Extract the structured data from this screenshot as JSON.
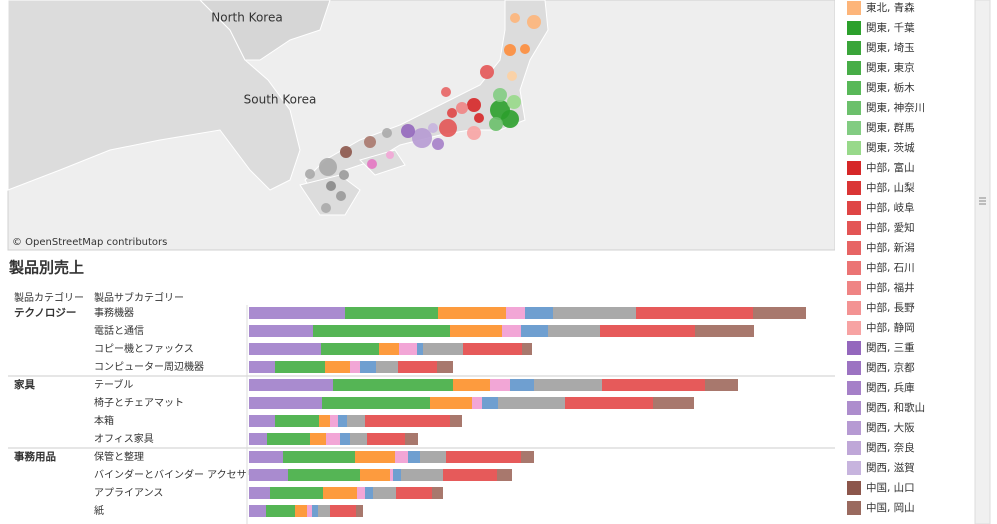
{
  "map": {
    "labels": [
      "North Korea",
      "South Korea",
      "© OpenStreetMap contributors"
    ]
  },
  "legend": {
    "items": [
      {
        "label": "東北, 青森",
        "color": "#fdb57a"
      },
      {
        "label": "関東, 千葉",
        "color": "#2ca02c"
      },
      {
        "label": "関東, 埼玉",
        "color": "#3aa53a"
      },
      {
        "label": "関東, 東京",
        "color": "#47ad47"
      },
      {
        "label": "関東, 栃木",
        "color": "#58b858"
      },
      {
        "label": "関東, 神奈川",
        "color": "#6cc06c"
      },
      {
        "label": "関東, 群馬",
        "color": "#82cc82"
      },
      {
        "label": "関東, 茨城",
        "color": "#98d98a"
      },
      {
        "label": "中部, 富山",
        "color": "#d62728"
      },
      {
        "label": "中部, 山梨",
        "color": "#da3535"
      },
      {
        "label": "中部, 岐阜",
        "color": "#df4545"
      },
      {
        "label": "中部, 愛知",
        "color": "#e35555"
      },
      {
        "label": "中部, 新潟",
        "color": "#e76464"
      },
      {
        "label": "中部, 石川",
        "color": "#eb7474"
      },
      {
        "label": "中部, 福井",
        "color": "#ef8484"
      },
      {
        "label": "中部, 長野",
        "color": "#f39393"
      },
      {
        "label": "中部, 静岡",
        "color": "#f7a3a3"
      },
      {
        "label": "関西, 三重",
        "color": "#9467bd"
      },
      {
        "label": "関西, 京都",
        "color": "#9c73c2"
      },
      {
        "label": "関西, 兵庫",
        "color": "#a580c8"
      },
      {
        "label": "関西, 和歌山",
        "color": "#ad8dcd"
      },
      {
        "label": "関西, 大阪",
        "color": "#b69ad3"
      },
      {
        "label": "関西, 奈良",
        "color": "#bfa7d8"
      },
      {
        "label": "関西, 滋賀",
        "color": "#c7b4de"
      },
      {
        "label": "中国, 山口",
        "color": "#8c564b"
      },
      {
        "label": "中国, 岡山",
        "color": "#9a6a5f"
      }
    ]
  },
  "chart_data": {
    "type": "stacked-bar-horizontal",
    "title": "製品別売上",
    "row_headers": [
      "製品カテゴリー",
      "製品サブカテゴリー"
    ],
    "category_groups": [
      "テクノロジー",
      "テクノロジー",
      "テクノロジー",
      "テクノロジー",
      "家具",
      "家具",
      "家具",
      "家具",
      "事務用品",
      "事務用品",
      "事務用品",
      "事務用品"
    ],
    "categories": [
      "事務機器",
      "電話と通信",
      "コピー機とファックス",
      "コンピューター周辺機器",
      "テーブル",
      "椅子とチェアマット",
      "本箱",
      "オフィス家具",
      "保管と整理",
      "バインダーとバインダー アクセサリー",
      "アプライアンス",
      "紙"
    ],
    "xlim": [
      0,
      586
    ],
    "series": [
      {
        "name": null,
        "color": "#a98bcf",
        "values": [
          96,
          64,
          72,
          26,
          84,
          73,
          26,
          18,
          34,
          39,
          21,
          17
        ]
      },
      {
        "name": null,
        "color": "#55b555",
        "values": [
          93,
          137,
          58,
          50,
          120,
          108,
          44,
          43,
          72,
          72,
          53,
          29
        ]
      },
      {
        "name": null,
        "color": "#fd9b3e",
        "values": [
          68,
          52,
          20,
          25,
          37,
          42,
          11,
          16,
          40,
          30,
          34,
          12
        ]
      },
      {
        "name": null,
        "color": "#f2a6d6",
        "values": [
          19,
          19,
          18,
          10,
          20,
          10,
          8,
          14,
          13,
          3,
          8,
          5
        ]
      },
      {
        "name": null,
        "color": "#6f9fd0",
        "values": [
          28,
          27,
          6,
          16,
          24,
          16,
          9,
          10,
          12,
          8,
          8,
          6
        ]
      },
      {
        "name": null,
        "color": "#a9a9a9",
        "values": [
          83,
          52,
          40,
          22,
          68,
          67,
          18,
          17,
          26,
          42,
          23,
          12
        ]
      },
      {
        "name": null,
        "color": "#e65a5a",
        "values": [
          117,
          95,
          59,
          39,
          103,
          88,
          85,
          38,
          75,
          54,
          36,
          26
        ]
      },
      {
        "name": null,
        "color": "#a8786d",
        "values": [
          53,
          59,
          10,
          16,
          33,
          41,
          12,
          13,
          13,
          15,
          11,
          7
        ]
      }
    ]
  }
}
